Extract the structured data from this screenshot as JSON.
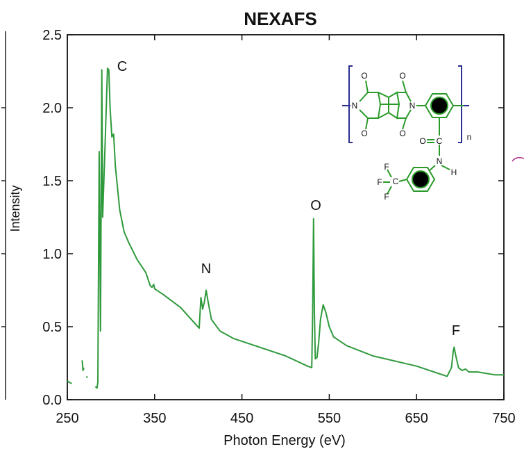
{
  "chart_data": {
    "type": "line",
    "title": "NEXAFS",
    "xlabel": "Photon Energy (eV)",
    "ylabel": "Intensity",
    "xlim": [
      250,
      750
    ],
    "ylim": [
      0,
      2.5
    ],
    "xticks": [
      250,
      350,
      450,
      550,
      650,
      750
    ],
    "yticks": [
      {
        "value": 0,
        "label": "0.0"
      },
      0.5,
      {
        "value": 1,
        "label": "1.0"
      },
      1.5,
      {
        "value": 2,
        "label": "2.0"
      },
      2.5
    ],
    "annotations": [
      "C",
      "N",
      "O",
      "F"
    ],
    "inset_labels": [
      "O",
      "N",
      "O",
      "O",
      "N",
      "O",
      "n",
      "O",
      "C",
      "N",
      "H",
      "F",
      "F",
      "F",
      "C"
    ],
    "series": [
      {
        "name": "Intensity",
        "color": "#2f9a3c",
        "x": [
          250,
          252,
          255,
          256,
          267,
          268,
          269,
          270,
          272,
          273,
          274,
          282,
          284,
          285,
          286.5,
          288,
          289.5,
          290.5,
          293,
          296,
          297.5,
          299,
          301,
          303,
          305,
          310,
          315,
          320,
          330,
          340,
          345,
          347,
          349,
          350,
          360,
          380,
          395,
          401,
          403,
          405,
          407,
          409,
          411,
          415,
          425,
          440,
          460,
          500,
          525,
          530,
          531,
          532,
          533,
          534,
          536,
          538,
          540,
          543,
          546,
          550,
          555,
          570,
          600,
          650,
          685,
          690,
          692,
          693,
          695,
          698,
          702,
          706,
          710,
          720,
          740,
          750
        ],
        "values": [
          0.13,
          0.12,
          0.11,
          null,
          0.27,
          0.2,
          0.22,
          null,
          0.16,
          0.15,
          null,
          0.09,
          0.08,
          0.12,
          1.7,
          0.47,
          2.26,
          1.25,
          1.7,
          2.27,
          2.26,
          2.0,
          1.8,
          1.82,
          1.6,
          1.3,
          1.15,
          1.08,
          0.96,
          0.87,
          0.78,
          0.77,
          0.79,
          0.76,
          0.72,
          0.63,
          0.53,
          0.49,
          0.7,
          0.62,
          0.67,
          0.75,
          0.68,
          0.55,
          0.47,
          0.42,
          0.38,
          0.3,
          0.23,
          0.22,
          0.6,
          1.24,
          0.6,
          0.28,
          0.29,
          0.4,
          0.55,
          0.65,
          0.6,
          0.5,
          0.43,
          0.37,
          0.3,
          0.23,
          0.16,
          0.22,
          0.33,
          0.36,
          0.3,
          0.22,
          0.2,
          0.21,
          0.19,
          0.19,
          0.17,
          0.17
        ]
      }
    ]
  }
}
